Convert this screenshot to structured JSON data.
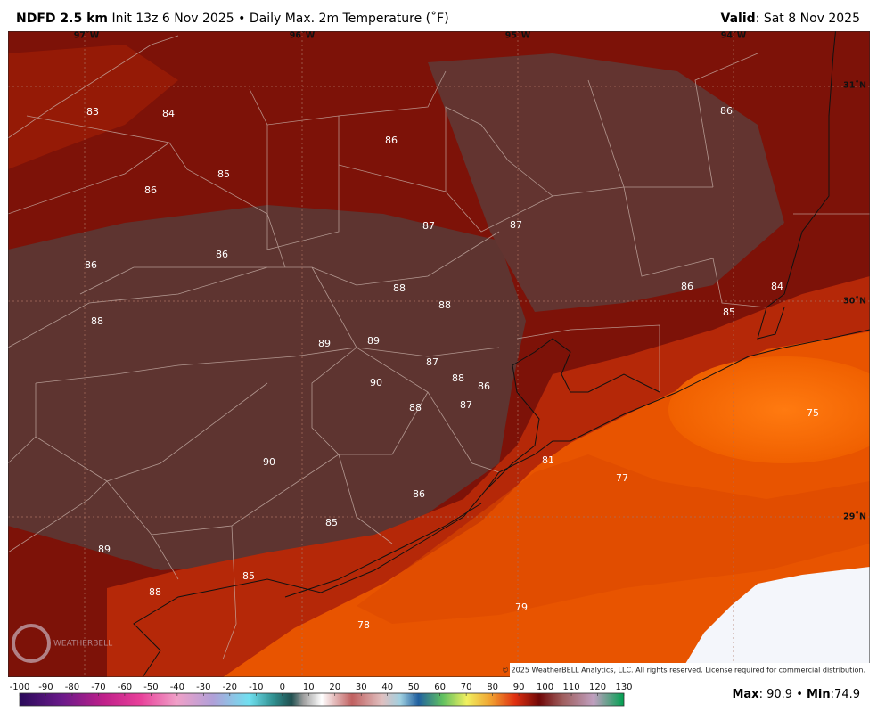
{
  "header": {
    "title": "NDFD 2.5 km",
    "init": "Init 13z 6 Nov 2025",
    "separator": "•",
    "field": "Daily Max. 2m Temperature (˚F)",
    "valid_label": "Valid",
    "colon": ":",
    "valid_date": "Sat 8 Nov 2025"
  },
  "map": {
    "longitude_labels": [
      "97˚W",
      "96˚W",
      "95˚W",
      "94˚W"
    ],
    "latitude_labels": [
      "31˚N",
      "30˚N",
      "29˚N"
    ],
    "temperatures": [
      83,
      84,
      85,
      86,
      86,
      87,
      87,
      86,
      86,
      86,
      88,
      88,
      86,
      84,
      85,
      88,
      89,
      89,
      87,
      88,
      86,
      90,
      88,
      87,
      75,
      90,
      81,
      77,
      86,
      85,
      89,
      85,
      88,
      79,
      78
    ],
    "watermark": "WEATHERBELL",
    "copyright": "© 2025 WeatherBELL Analytics, LLC. All rights reserved. License required for commercial distribution."
  },
  "legend": {
    "ticks": [
      -100,
      -90,
      -80,
      -70,
      -60,
      -50,
      -40,
      -30,
      -20,
      -10,
      0,
      10,
      20,
      30,
      40,
      50,
      60,
      70,
      80,
      90,
      100,
      110,
      120,
      130
    ]
  },
  "footer": {
    "max_label": "Max",
    "max": 90.9,
    "separator": "•",
    "min_label": "Min",
    "min": 74.9,
    "colon": ":"
  }
}
